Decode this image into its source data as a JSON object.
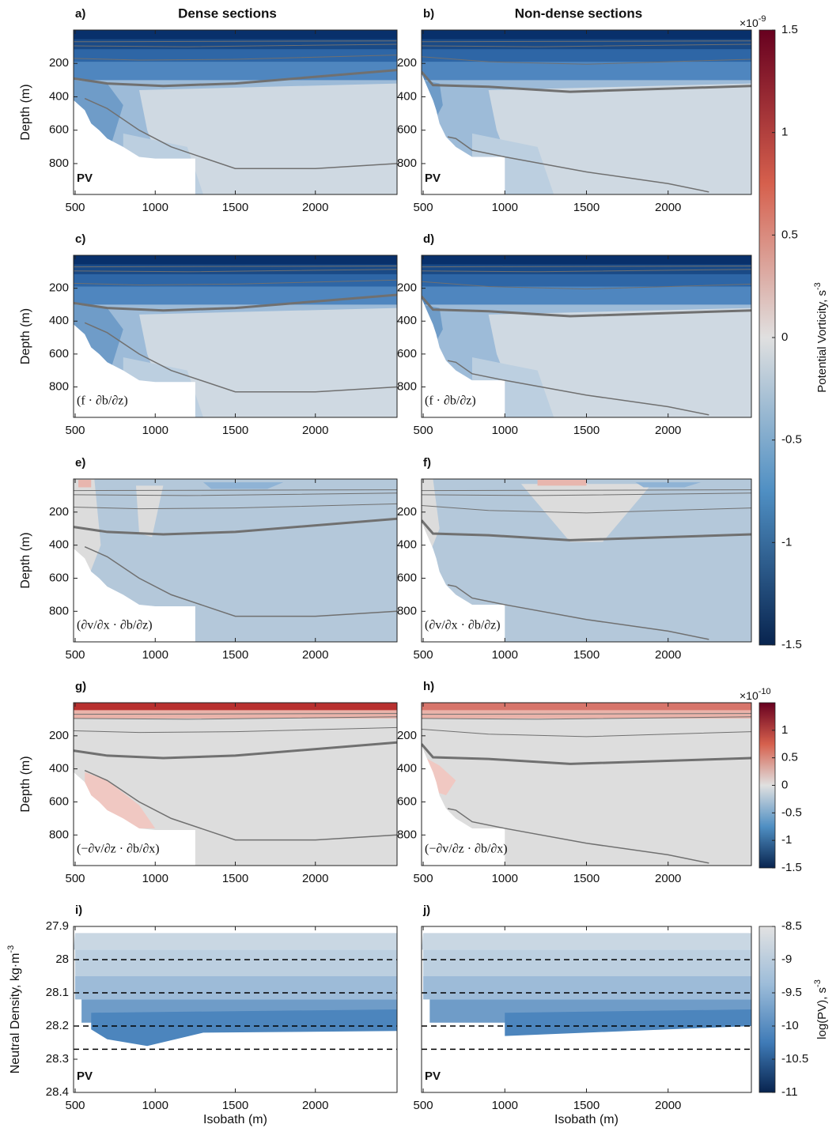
{
  "chart_data": [
    {
      "type": "contour",
      "panel_label": "a)",
      "column_title": "Dense sections",
      "annotation": "PV",
      "ylabel": "Depth (m)",
      "xlim": [
        490,
        2510
      ],
      "xticks": [
        500,
        1000,
        1500,
        2000
      ],
      "ylim": [
        985,
        0
      ],
      "yticks": [
        200,
        400,
        600,
        800
      ]
    },
    {
      "type": "contour",
      "panel_label": "b)",
      "column_title": "Non-dense sections",
      "annotation": "PV",
      "xlim": [
        490,
        2510
      ],
      "xticks": [
        500,
        1000,
        1500,
        2000
      ],
      "ylim": [
        985,
        0
      ],
      "yticks": [
        200,
        400,
        600,
        800
      ]
    },
    {
      "type": "contour",
      "panel_label": "c)",
      "annotation": "(f · ∂b/∂z)",
      "ylabel": "Depth (m)",
      "xlim": [
        490,
        2510
      ],
      "xticks": [
        500,
        1000,
        1500,
        2000
      ],
      "ylim": [
        985,
        0
      ],
      "yticks": [
        200,
        400,
        600,
        800
      ]
    },
    {
      "type": "contour",
      "panel_label": "d)",
      "annotation": "(f · ∂b/∂z)",
      "xlim": [
        490,
        2510
      ],
      "xticks": [
        500,
        1000,
        1500,
        2000
      ],
      "ylim": [
        985,
        0
      ],
      "yticks": [
        200,
        400,
        600,
        800
      ]
    },
    {
      "type": "contour",
      "panel_label": "e)",
      "annotation": "(∂v/∂x · ∂b/∂z)",
      "ylabel": "Depth (m)",
      "xlim": [
        490,
        2510
      ],
      "xticks": [
        500,
        1000,
        1500,
        2000
      ],
      "ylim": [
        985,
        0
      ],
      "yticks": [
        200,
        400,
        600,
        800
      ]
    },
    {
      "type": "contour",
      "panel_label": "f)",
      "annotation": "(∂v/∂x · ∂b/∂z)",
      "xlim": [
        490,
        2510
      ],
      "xticks": [
        500,
        1000,
        1500,
        2000
      ],
      "ylim": [
        985,
        0
      ],
      "yticks": [
        200,
        400,
        600,
        800
      ]
    },
    {
      "type": "contour",
      "panel_label": "g)",
      "annotation": "(−∂v/∂z · ∂b/∂x)",
      "ylabel": "Depth (m)",
      "xlim": [
        490,
        2510
      ],
      "xticks": [
        500,
        1000,
        1500,
        2000
      ],
      "ylim": [
        985,
        0
      ],
      "yticks": [
        200,
        400,
        600,
        800
      ]
    },
    {
      "type": "contour",
      "panel_label": "h)",
      "annotation": "(−∂v/∂z · ∂b/∂x)",
      "xlim": [
        490,
        2510
      ],
      "xticks": [
        500,
        1000,
        1500,
        2000
      ],
      "ylim": [
        985,
        0
      ],
      "yticks": [
        200,
        400,
        600,
        800
      ]
    },
    {
      "type": "contour",
      "panel_label": "i)",
      "annotation": "PV",
      "ylabel": "Neutral Density, kg·m",
      "ylabel_exponent": "-3",
      "xlabel": "Isobath (m)",
      "xlim": [
        490,
        2510
      ],
      "xticks": [
        500,
        1000,
        1500,
        2000
      ],
      "ylim": [
        28.4,
        27.9
      ],
      "yticks": [
        27.9,
        28,
        28.1,
        28.2,
        28.3,
        28.4
      ],
      "reference_lines": [
        28,
        28.1,
        28.2,
        28.27
      ]
    },
    {
      "type": "contour",
      "panel_label": "j)",
      "annotation": "PV",
      "xlabel": "Isobath (m)",
      "xlim": [
        490,
        2510
      ],
      "xticks": [
        500,
        1000,
        1500,
        2000
      ],
      "ylim": [
        28.4,
        27.9
      ],
      "reference_lines": [
        28,
        28.1,
        28.2,
        28.27
      ]
    },
    {
      "type": "colorbar",
      "label": "Potential Vorticity, s",
      "label_exponent": "-3",
      "multiplier_base": "×10",
      "multiplier_exponent": "-9",
      "ylim": [
        -1.5,
        1.5
      ],
      "yticks": [
        1.5,
        1,
        0.5,
        0,
        -0.5,
        -1,
        -1.5
      ]
    },
    {
      "type": "colorbar",
      "multiplier_base": "×10",
      "multiplier_exponent": "-10",
      "ylim": [
        -1.5,
        1.5
      ],
      "yticks": [
        1,
        0.5,
        0,
        -0.5,
        -1,
        -1.5
      ]
    },
    {
      "type": "colorbar",
      "label": "log(PV), s",
      "label_exponent": "-3",
      "ylim": [
        -11,
        -8.5
      ],
      "yticks": [
        -8.5,
        -9,
        -9.5,
        -10,
        -10.5,
        -11
      ]
    }
  ]
}
